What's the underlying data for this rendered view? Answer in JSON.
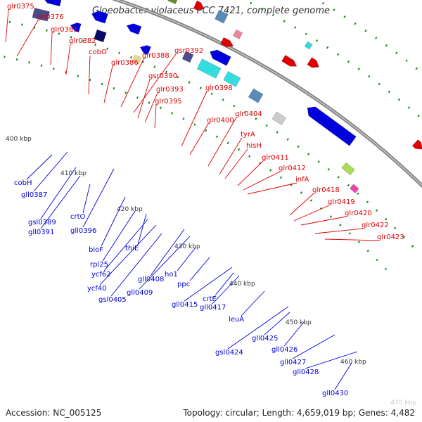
{
  "header": {
    "title": "Gloeobacter violaceus PCC 7421, complete genome"
  },
  "footer": {
    "accession": "Accession: NC_005125",
    "topology": "Topology: circular; Length: 4,659,019 bp; Genes: 4,482",
    "corner_tick": "470 kbp"
  },
  "scale_labels": [
    "400 kbp",
    "410 kbp",
    "420 kbp",
    "430 kbp",
    "440 kbp",
    "450 kbp",
    "460 kbp"
  ],
  "colors": {
    "forward": "#e00000",
    "reverse": "#0000dd",
    "backbone": "#808080",
    "tick": "#1a8a1a",
    "cyan": "#33dddd",
    "slate": "#4a4a8c",
    "steel": "#5a8ab8",
    "pink": "#e88a9a",
    "olive": "#6a8a2a",
    "gray": "#aaaaaa"
  },
  "forward_genes": [
    "glr0375",
    "glr0376",
    "glr0381",
    "glr0382",
    "cobO",
    "glr0386",
    "glr0388",
    "gsr0392",
    "gsr0390",
    "glr0393",
    "glr0395",
    "glr0398",
    "glr0400",
    "glr0404",
    "tyrA",
    "hisH",
    "glr0411",
    "glr0412",
    "infA",
    "glr0418",
    "glr0419",
    "glr0420",
    "glr0422",
    "glr0423"
  ],
  "reverse_genes": [
    "cobH",
    "gll0387",
    "gsl0389",
    "gll0391",
    "crtO",
    "gll0396",
    "bioF",
    "rpl25",
    "thiE",
    "ycf62",
    "ycf40",
    "gsl0405",
    "gll0408",
    "gll0409",
    "ho1",
    "ppc",
    "gll0415",
    "crtE",
    "gll0417",
    "leuA",
    "gsl0424",
    "gll0425",
    "gll0426",
    "gll0427",
    "gll0428",
    "gll0430"
  ]
}
